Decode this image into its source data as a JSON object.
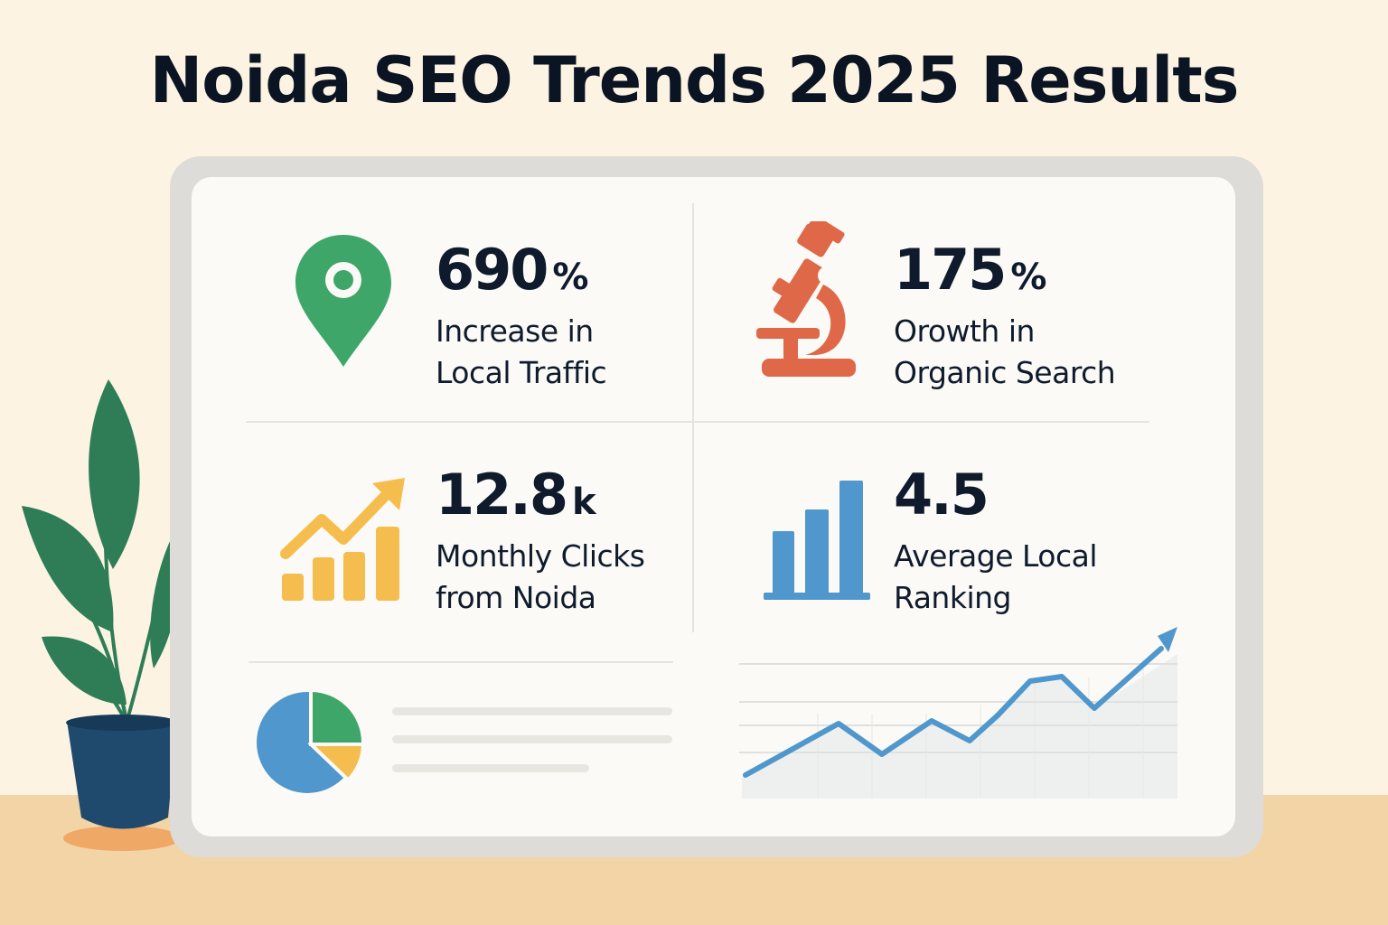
{
  "title": "Noida SEO Trends 2025 Results",
  "colors": {
    "green": "#3fa66a",
    "red": "#df6849",
    "yellow": "#f5bd4d",
    "blue": "#4f97cc",
    "navy": "#0f1b2d",
    "background": "#fcf3e3",
    "floor": "#f3d4a6"
  },
  "stats": [
    {
      "icon": "map-pin-icon",
      "value": "690",
      "unit": "%",
      "label_line1": "Increase in",
      "label_line2": "Local Traffic"
    },
    {
      "icon": "microscope-icon",
      "value": "175",
      "unit": "%",
      "label_line1": "Orowth in",
      "label_line2": "Organic Search"
    },
    {
      "icon": "trending-up-bars-icon",
      "value": "12.8",
      "unit": "k",
      "label_line1": "Monthly Clicks",
      "label_line2": "from Noida"
    },
    {
      "icon": "bar-chart-icon",
      "value": "4.5",
      "unit": "",
      "label_line1": "Average Local",
      "label_line2": "Ranking"
    }
  ],
  "decor": {
    "pie_icon": "pie-chart-icon",
    "line_chart_icon": "line-chart-icon",
    "plant_icon": "potted-plant-icon"
  }
}
